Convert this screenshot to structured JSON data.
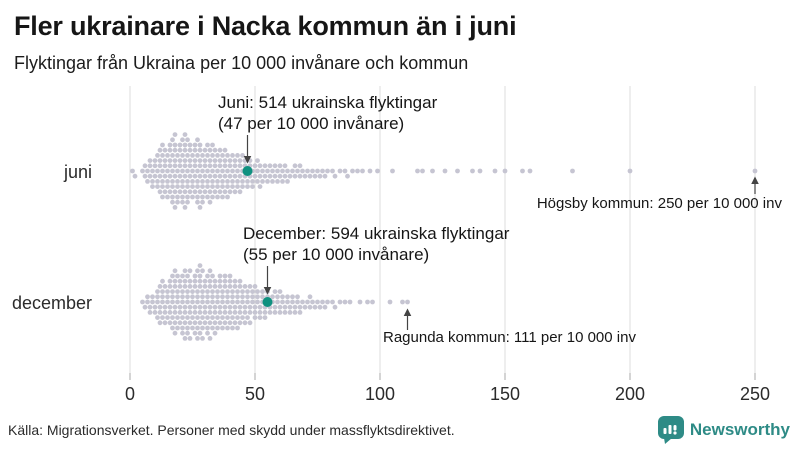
{
  "header": {
    "title": "Fler ukrainare i Nacka kommun än i juni",
    "subtitle": "Flyktingar från Ukraina per 10 000 invånare och kommun"
  },
  "footer": {
    "source": "Källa: Migrationsverket. Personer med skydd under massflyktsdirektivet.",
    "brand": "Newsworthy"
  },
  "colors": {
    "dot": "#c6c5d2",
    "highlight": "#0f9180",
    "brand_teal": "#2e8b86",
    "grid": "#dcdcdc",
    "arrow": "#444444"
  },
  "chart_data": {
    "type": "scatter",
    "variant": "beeswarm-strip-plot",
    "x_unit": "per 10 000 invånare",
    "xlim": [
      0,
      260
    ],
    "x_ticks": [
      0,
      50,
      100,
      150,
      200,
      250
    ],
    "grid": "vertical-on",
    "rows": [
      {
        "label": "juni",
        "highlight": {
          "kommun": "Nacka",
          "value": 47,
          "refugees": 514,
          "line1": "Juni: 514 ukrainska flyktingar",
          "line2": "(47 per 10 000 invånare)"
        },
        "outlier": {
          "kommun": "Högsby",
          "value": 250,
          "label": "Högsby kommun: 250 per 10 000 inv"
        },
        "values": [
          1,
          2,
          5,
          6,
          6,
          7,
          7,
          8,
          8,
          8,
          9,
          9,
          9,
          10,
          10,
          10,
          11,
          11,
          11,
          11,
          12,
          12,
          12,
          12,
          12,
          13,
          13,
          13,
          13,
          13,
          13,
          14,
          14,
          14,
          14,
          14,
          15,
          15,
          15,
          15,
          15,
          16,
          16,
          16,
          16,
          16,
          16,
          17,
          17,
          17,
          17,
          17,
          17,
          17,
          18,
          18,
          18,
          18,
          18,
          18,
          18,
          18,
          19,
          19,
          19,
          19,
          19,
          19,
          20,
          20,
          20,
          20,
          20,
          20,
          21,
          21,
          21,
          21,
          21,
          21,
          21,
          22,
          22,
          22,
          22,
          22,
          22,
          22,
          22,
          23,
          23,
          23,
          23,
          23,
          23,
          23,
          24,
          24,
          24,
          24,
          24,
          24,
          25,
          25,
          25,
          25,
          25,
          26,
          26,
          26,
          26,
          26,
          26,
          27,
          27,
          27,
          27,
          27,
          27,
          27,
          28,
          28,
          28,
          28,
          28,
          28,
          28,
          29,
          29,
          29,
          29,
          29,
          29,
          30,
          30,
          30,
          30,
          30,
          31,
          31,
          31,
          31,
          31,
          31,
          32,
          32,
          32,
          32,
          32,
          32,
          33,
          33,
          33,
          33,
          33,
          33,
          34,
          34,
          34,
          34,
          34,
          35,
          35,
          35,
          35,
          35,
          36,
          36,
          36,
          36,
          36,
          37,
          37,
          37,
          37,
          37,
          38,
          38,
          38,
          38,
          38,
          39,
          39,
          39,
          39,
          39,
          40,
          40,
          40,
          40,
          41,
          41,
          41,
          41,
          42,
          42,
          42,
          42,
          43,
          43,
          43,
          43,
          44,
          44,
          44,
          44,
          45,
          45,
          45,
          45,
          46,
          46,
          46,
          47,
          47,
          47,
          48,
          48,
          48,
          49,
          49,
          49,
          50,
          50,
          51,
          51,
          51,
          52,
          52,
          52,
          53,
          53,
          54,
          54,
          55,
          55,
          56,
          56,
          57,
          57,
          58,
          58,
          59,
          59,
          60,
          60,
          61,
          61,
          62,
          62,
          63,
          63,
          64,
          65,
          66,
          66,
          67,
          68,
          68,
          69,
          70,
          71,
          72,
          73,
          74,
          75,
          76,
          77,
          78,
          79,
          81,
          82,
          84,
          86,
          87,
          89,
          91,
          93,
          96,
          99,
          105,
          115,
          117,
          121,
          126,
          131,
          137,
          140,
          146,
          150,
          157,
          160,
          177,
          200,
          250
        ]
      },
      {
        "label": "december",
        "highlight": {
          "kommun": "Nacka",
          "value": 55,
          "refugees": 594,
          "line1": "December: 594 ukrainska flyktingar",
          "line2": "(55 per 10 000 invånare)"
        },
        "outlier": {
          "kommun": "Ragunda",
          "value": 111,
          "label": "Ragunda kommun: 111 per 10 000 inv"
        },
        "values": [
          5,
          6,
          7,
          7,
          8,
          8,
          9,
          9,
          10,
          10,
          11,
          11,
          11,
          11,
          12,
          12,
          12,
          12,
          13,
          13,
          13,
          13,
          13,
          14,
          14,
          14,
          14,
          15,
          15,
          15,
          15,
          16,
          16,
          16,
          16,
          16,
          17,
          17,
          17,
          17,
          17,
          17,
          18,
          18,
          18,
          18,
          18,
          18,
          18,
          19,
          19,
          19,
          19,
          19,
          19,
          20,
          20,
          20,
          20,
          20,
          21,
          21,
          21,
          21,
          21,
          21,
          21,
          22,
          22,
          22,
          22,
          22,
          22,
          22,
          23,
          23,
          23,
          23,
          23,
          23,
          23,
          24,
          24,
          24,
          24,
          24,
          24,
          24,
          25,
          25,
          25,
          25,
          25,
          26,
          26,
          26,
          26,
          26,
          26,
          26,
          27,
          27,
          27,
          27,
          27,
          27,
          27,
          28,
          28,
          28,
          28,
          28,
          28,
          28,
          28,
          29,
          29,
          29,
          29,
          29,
          29,
          29,
          30,
          30,
          30,
          30,
          30,
          31,
          31,
          31,
          31,
          31,
          31,
          31,
          32,
          32,
          32,
          32,
          32,
          32,
          32,
          33,
          33,
          33,
          33,
          33,
          33,
          34,
          34,
          34,
          34,
          34,
          34,
          35,
          35,
          35,
          35,
          35,
          36,
          36,
          36,
          36,
          36,
          36,
          37,
          37,
          37,
          37,
          37,
          38,
          38,
          38,
          38,
          38,
          38,
          39,
          39,
          39,
          39,
          39,
          40,
          40,
          40,
          40,
          40,
          40,
          41,
          41,
          41,
          41,
          41,
          42,
          42,
          42,
          42,
          42,
          43,
          43,
          43,
          43,
          43,
          44,
          44,
          44,
          44,
          44,
          45,
          45,
          45,
          45,
          46,
          46,
          46,
          46,
          47,
          47,
          47,
          47,
          48,
          48,
          48,
          48,
          49,
          49,
          49,
          50,
          50,
          50,
          50,
          51,
          51,
          51,
          52,
          52,
          52,
          53,
          53,
          53,
          54,
          54,
          54,
          55,
          55,
          55,
          56,
          56,
          57,
          57,
          58,
          58,
          58,
          59,
          59,
          60,
          60,
          60,
          61,
          61,
          62,
          62,
          63,
          63,
          64,
          64,
          65,
          65,
          66,
          66,
          67,
          67,
          68,
          68,
          69,
          70,
          71,
          72,
          72,
          73,
          74,
          75,
          76,
          77,
          78,
          79,
          81,
          82,
          84,
          86,
          88,
          92,
          95,
          97,
          104,
          109,
          111
        ]
      }
    ]
  }
}
